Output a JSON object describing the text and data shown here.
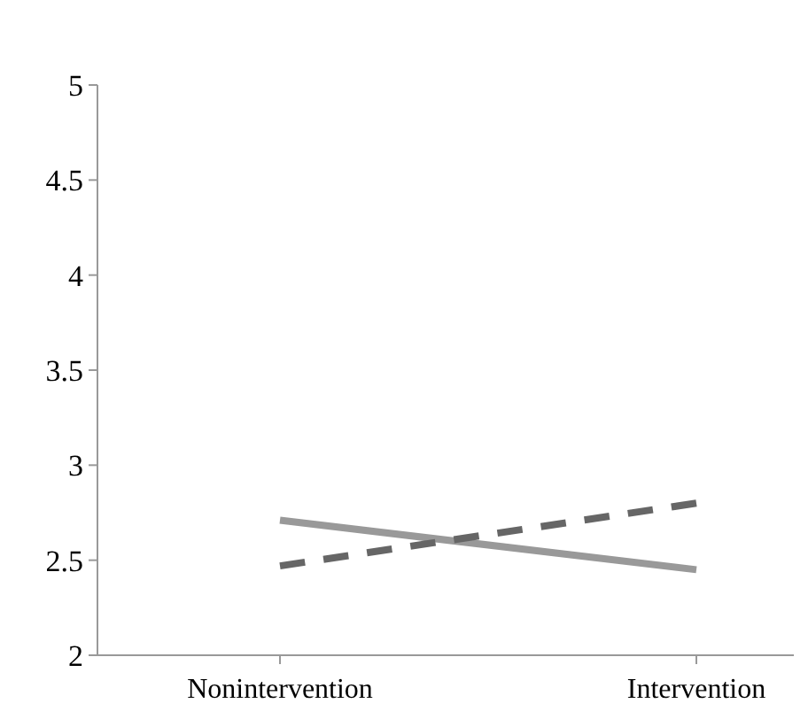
{
  "chart_data": {
    "type": "line",
    "categories": [
      "Nonintervention",
      "Intervention"
    ],
    "series": [
      {
        "color": "#999999",
        "values": [
          2.71,
          2.45
        ],
        "line_style": "solid"
      },
      {
        "color": "#666666",
        "values": [
          2.47,
          2.8
        ],
        "line_style": "dashed"
      }
    ],
    "ylim": [
      2,
      5
    ],
    "yticks": [
      2,
      2.5,
      3,
      3.5,
      4,
      4.5,
      5
    ],
    "grid": false,
    "marker": "none"
  }
}
